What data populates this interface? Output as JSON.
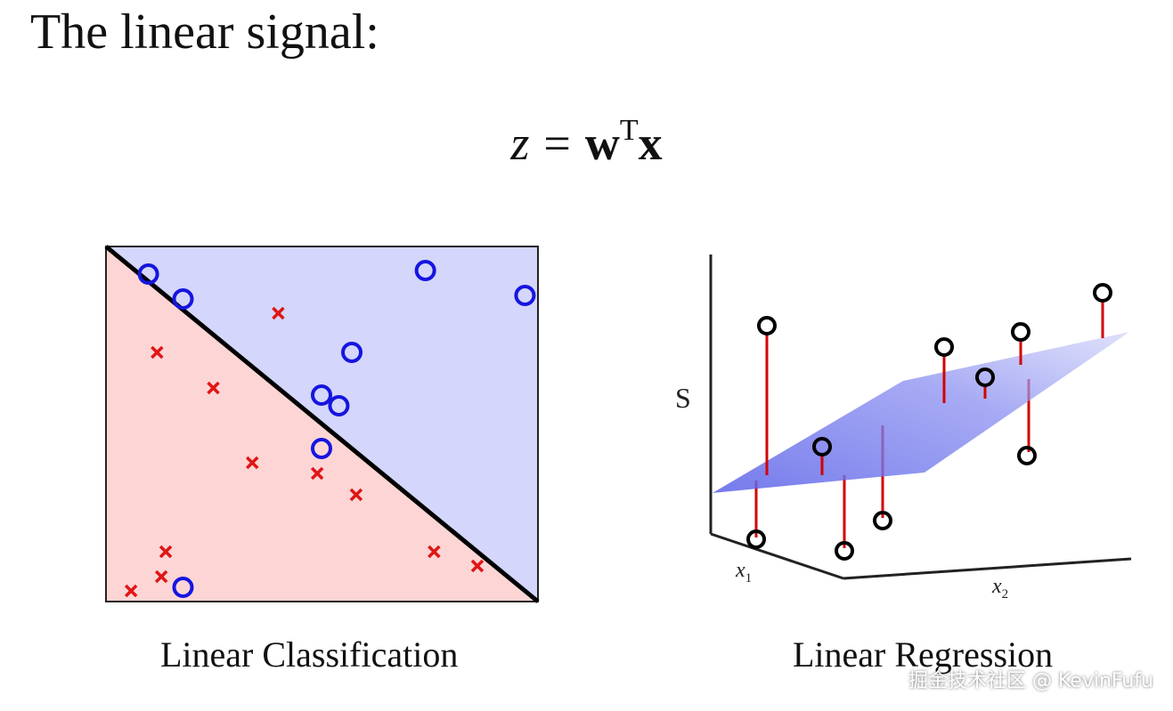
{
  "title": "The linear signal:",
  "formula": {
    "z": "z",
    "equals": "=",
    "w": "w",
    "sup": "T",
    "x": "x"
  },
  "classification": {
    "caption": "Linear Classification",
    "colors": {
      "positive_region": "#d4d6fb",
      "negative_region": "#fdd5d5",
      "circle": "#1515e0",
      "cross": "#e01515",
      "boundary": "#000000"
    },
    "circles": [
      [
        0.1,
        0.08
      ],
      [
        0.18,
        0.15
      ],
      [
        0.74,
        0.07
      ],
      [
        0.97,
        0.14
      ],
      [
        0.57,
        0.3
      ],
      [
        0.5,
        0.42
      ],
      [
        0.54,
        0.45
      ],
      [
        0.5,
        0.57
      ],
      [
        0.18,
        0.96
      ]
    ],
    "crosses": [
      [
        0.4,
        0.19
      ],
      [
        0.12,
        0.3
      ],
      [
        0.25,
        0.4
      ],
      [
        0.34,
        0.61
      ],
      [
        0.49,
        0.64
      ],
      [
        0.58,
        0.7
      ],
      [
        0.14,
        0.86
      ],
      [
        0.13,
        0.93
      ],
      [
        0.06,
        0.97
      ],
      [
        0.76,
        0.86
      ],
      [
        0.86,
        0.9
      ]
    ]
  },
  "regression": {
    "caption": "Linear Regression",
    "axis_s": "S",
    "axis_x1": "x",
    "axis_x1_sub": "1",
    "axis_x2": "x",
    "axis_x2_sub": "2",
    "colors": {
      "plane": "#8f94f0",
      "residual": "#d40000",
      "point": "#000000"
    }
  },
  "watermark": "掘金技术社区 @ KevinFufu"
}
